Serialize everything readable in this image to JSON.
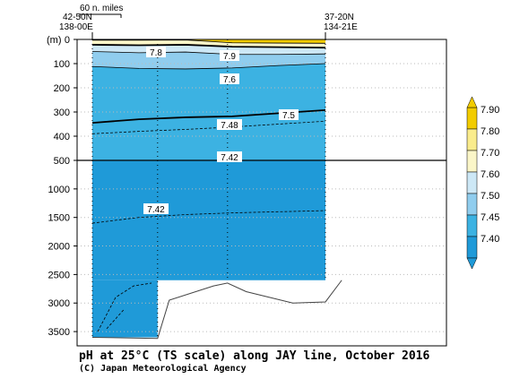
{
  "chart_data": {
    "type": "heatmap",
    "title": "pH at 25°C (TS scale) along JAY line, October 2016",
    "credit": "(C) Japan Meteorological Agency",
    "ylabel": "(m)",
    "y_ticks_upper": [
      0,
      100,
      200,
      300,
      400,
      500
    ],
    "y_ticks_lower": [
      1000,
      1500,
      2000,
      2500,
      3000,
      3500
    ],
    "x_start_label": [
      "42-50N",
      "138-00E"
    ],
    "x_end_label": [
      "37-20N",
      "134-21E"
    ],
    "scale_label": "60 n. miles",
    "colorbar": {
      "levels": [
        "7.90",
        "7.80",
        "7.70",
        "7.60",
        "7.50",
        "7.45",
        "7.40"
      ],
      "colors": [
        "#f2cc00",
        "#faec8c",
        "#fbf6c8",
        "#cde8f6",
        "#90cdee",
        "#3cb2e2",
        "#1f9ad8"
      ]
    },
    "contour_labels": [
      "7.8",
      "7.9",
      "7.6",
      "7.5",
      "7.48",
      "7.42",
      "7.42"
    ],
    "contours": [
      {
        "value": 7.9,
        "depth_m": [
          3,
          3,
          2,
          14,
          15,
          16
        ]
      },
      {
        "value": 7.8,
        "depth_m": [
          22,
          24,
          22,
          30,
          32,
          34
        ]
      },
      {
        "value": 7.7,
        "depth_m": [
          50,
          55,
          52,
          62,
          62,
          60
        ]
      },
      {
        "value": 7.6,
        "depth_m": [
          112,
          120,
          122,
          118,
          108,
          100
        ]
      },
      {
        "value": 7.5,
        "depth_m": [
          345,
          330,
          322,
          318,
          305,
          292
        ]
      },
      {
        "value": 7.48,
        "depth_m": [
          390,
          380,
          372,
          362,
          350,
          338
        ]
      },
      {
        "value": 7.42,
        "depth_m": [
          1600,
          1500,
          1450,
          1420,
          1400,
          1380
        ]
      }
    ],
    "station_fractions": [
      0.0,
      0.28,
      0.58,
      1.0
    ],
    "bottom_depth_m": [
      3600,
      3620,
      2950,
      2700,
      2650,
      2800,
      3000,
      2980,
      2600
    ]
  }
}
